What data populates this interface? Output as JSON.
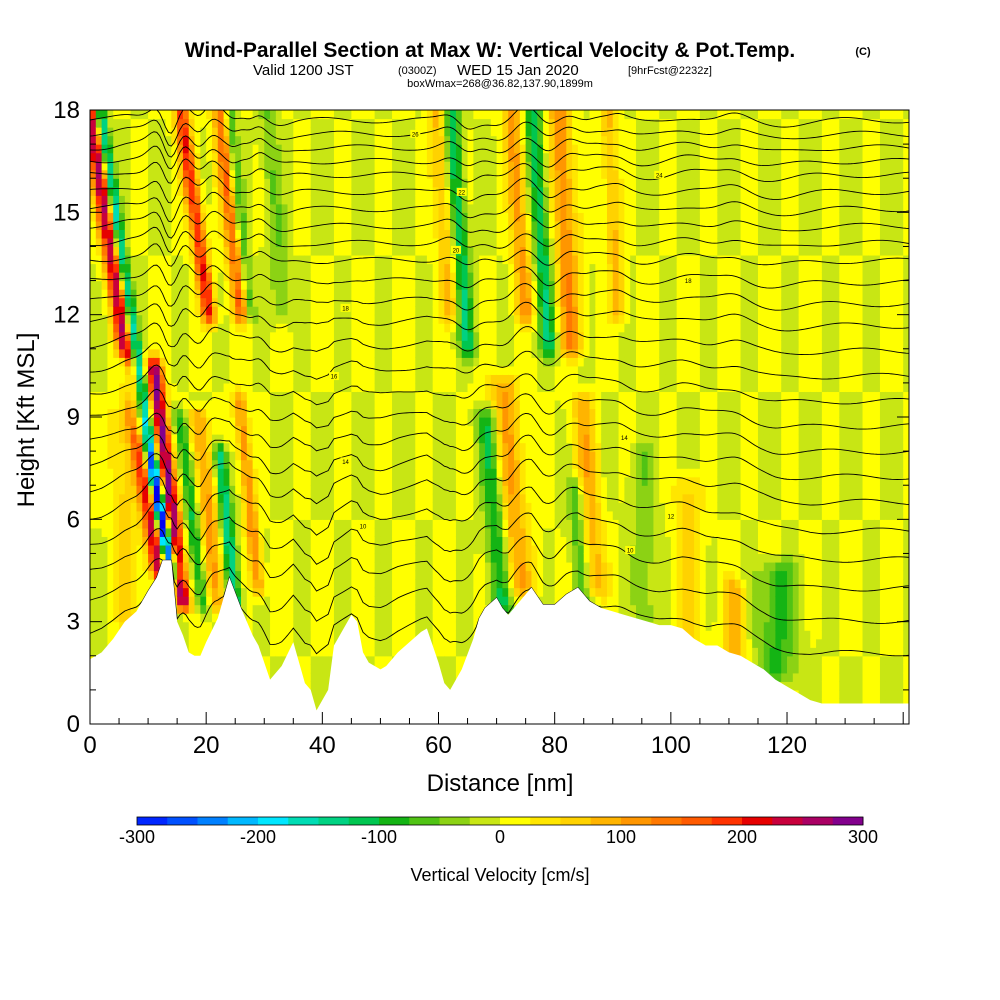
{
  "header": {
    "title": "Wind-Parallel Section at Max W: Vertical Velocity & Pot.Temp.",
    "title_mark": "(C)",
    "valid_prefix": "Valid 1200 JST",
    "valid_utc": "(0300Z)",
    "valid_date": "WED 15 Jan 2020",
    "forecast_info": "[9hrFcst@2232z]",
    "box_info": "boxWmax=268@36.82,137.90,1899m"
  },
  "colors": {
    "background": "#ffffff",
    "terrain": "#ffffff",
    "contour": "#000000",
    "palette": [
      "#0000f0",
      "#0026ff",
      "#0050ff",
      "#0080ff",
      "#00b8ff",
      "#00e6ff",
      "#00dcb4",
      "#00d282",
      "#00c650",
      "#14b414",
      "#50c314",
      "#8cd214",
      "#c8e614",
      "#ffff00",
      "#ffe600",
      "#ffd200",
      "#ffb400",
      "#ff9600",
      "#ff7800",
      "#ff5a00",
      "#ff3200",
      "#e60000",
      "#c8003c",
      "#aa0064",
      "#82008c",
      "#5a0096"
    ]
  },
  "chart_data": {
    "type": "heatmap",
    "title": "Wind-Parallel Section at Max W: Vertical Velocity & Pot.Temp.",
    "xlabel": "Distance [nm]",
    "ylabel": "Height [Kft MSL]",
    "xlim": [
      0,
      141
    ],
    "ylim": [
      0,
      18
    ],
    "x_ticks": [
      0,
      20,
      40,
      60,
      80,
      100,
      120
    ],
    "y_ticks": [
      0,
      3,
      6,
      9,
      12,
      15,
      18
    ],
    "grid": false,
    "colorbar": {
      "title": "Vertical Velocity [cm/s]",
      "min": -300,
      "max": 300,
      "step": 25,
      "ticks": [
        -300,
        -200,
        -100,
        0,
        100,
        200,
        300
      ]
    },
    "terrain_kft": [
      [
        0,
        1.9
      ],
      [
        2,
        2.1
      ],
      [
        4,
        2.5
      ],
      [
        6,
        3.0
      ],
      [
        8,
        3.3
      ],
      [
        10,
        3.9
      ],
      [
        11.5,
        4.3
      ],
      [
        12.5,
        4.8
      ],
      [
        14,
        4.8
      ],
      [
        15,
        3.0
      ],
      [
        16,
        2.6
      ],
      [
        17,
        2.1
      ],
      [
        18,
        2.0
      ],
      [
        19,
        2.0
      ],
      [
        20,
        2.4
      ],
      [
        22,
        3.1
      ],
      [
        24,
        4.3
      ],
      [
        26,
        3.4
      ],
      [
        27,
        3.0
      ],
      [
        28,
        2.6
      ],
      [
        29,
        2.3
      ],
      [
        30,
        1.8
      ],
      [
        31,
        1.3
      ],
      [
        33,
        1.7
      ],
      [
        35,
        2.4
      ],
      [
        37,
        1.2
      ],
      [
        38,
        1.0
      ],
      [
        39,
        0.4
      ],
      [
        41,
        1.0
      ],
      [
        42,
        2.3
      ],
      [
        44,
        2.9
      ],
      [
        45,
        3.2
      ],
      [
        46,
        3.0
      ],
      [
        47,
        2.1
      ],
      [
        48,
        1.8
      ],
      [
        50,
        1.6
      ],
      [
        51,
        1.7
      ],
      [
        53,
        2.1
      ],
      [
        55,
        2.4
      ],
      [
        57,
        2.7
      ],
      [
        58,
        2.8
      ],
      [
        60,
        1.8
      ],
      [
        61,
        1.2
      ],
      [
        62,
        1.0
      ],
      [
        63,
        1.3
      ],
      [
        64,
        1.6
      ],
      [
        66,
        2.5
      ],
      [
        67,
        3.1
      ],
      [
        68,
        3.4
      ],
      [
        70,
        3.7
      ],
      [
        71,
        3.4
      ],
      [
        72,
        3.2
      ],
      [
        73,
        3.4
      ],
      [
        74,
        3.6
      ],
      [
        76,
        4.0
      ],
      [
        78,
        3.5
      ],
      [
        80,
        3.5
      ],
      [
        82,
        3.8
      ],
      [
        84,
        4.0
      ],
      [
        86,
        3.6
      ],
      [
        88,
        3.4
      ],
      [
        90,
        3.3
      ],
      [
        92,
        3.2
      ],
      [
        94,
        3.1
      ],
      [
        96,
        3.0
      ],
      [
        98,
        2.9
      ],
      [
        100,
        2.9
      ],
      [
        102,
        2.8
      ],
      [
        104,
        2.5
      ],
      [
        106,
        2.3
      ],
      [
        108,
        2.3
      ],
      [
        110,
        2.1
      ],
      [
        112,
        2.0
      ],
      [
        114,
        1.8
      ],
      [
        116,
        1.6
      ],
      [
        118,
        1.3
      ],
      [
        120,
        1.1
      ],
      [
        122,
        0.9
      ],
      [
        124,
        0.7
      ],
      [
        126,
        0.6
      ],
      [
        128,
        0.6
      ],
      [
        130,
        0.6
      ],
      [
        132,
        0.6
      ],
      [
        134,
        0.6
      ],
      [
        136,
        0.6
      ],
      [
        138,
        0.6
      ],
      [
        141,
        0.6
      ]
    ],
    "updrafts": [
      {
        "x": 12,
        "h0": 4.5,
        "h1": 18,
        "tilt": -0.22,
        "width": 1.6,
        "w": 260
      },
      {
        "x": 16,
        "h0": 3.6,
        "h1": 10.5,
        "tilt": -0.18,
        "width": 1.3,
        "w": 290
      },
      {
        "x": 20.5,
        "h0": 12,
        "h1": 18,
        "tilt": -0.2,
        "width": 1.3,
        "w": 200
      },
      {
        "x": 22,
        "h0": 3.5,
        "h1": 9.0,
        "tilt": -0.15,
        "width": 1.8,
        "w": 110
      },
      {
        "x": 26,
        "h0": 12,
        "h1": 18,
        "tilt": -0.15,
        "width": 1.5,
        "w": 150
      },
      {
        "x": 29,
        "h0": 4.0,
        "h1": 9.5,
        "tilt": -0.15,
        "width": 1.2,
        "w": 120
      },
      {
        "x": 7,
        "h0": 3.0,
        "h1": 9.0,
        "tilt": -0.08,
        "width": 2.2,
        "w": 60
      },
      {
        "x": 62,
        "h0": 12,
        "h1": 18,
        "tilt": -0.1,
        "width": 1.5,
        "w": 80
      },
      {
        "x": 74,
        "h0": 4.0,
        "h1": 10.0,
        "tilt": -0.12,
        "width": 2.6,
        "w": 100
      },
      {
        "x": 75,
        "h0": 12,
        "h1": 18,
        "tilt": -0.1,
        "width": 1.6,
        "w": 110
      },
      {
        "x": 83,
        "h0": 11,
        "h1": 18,
        "tilt": -0.08,
        "width": 2.0,
        "w": 120
      },
      {
        "x": 87,
        "h0": 4.0,
        "h1": 9.5,
        "tilt": -0.1,
        "width": 2.0,
        "w": 90
      },
      {
        "x": 91,
        "h0": 12,
        "h1": 18,
        "tilt": -0.08,
        "width": 1.4,
        "w": 80
      },
      {
        "x": 103,
        "h0": 2.5,
        "h1": 7.0,
        "tilt": 0.0,
        "width": 2.5,
        "w": 60
      },
      {
        "x": 111,
        "h0": 2.0,
        "h1": 4.0,
        "tilt": 0.0,
        "width": 2.0,
        "w": 90
      }
    ],
    "downdrafts": [
      {
        "x": 13.5,
        "h0": 4.5,
        "h1": 18,
        "tilt": -0.22,
        "width": 1.0,
        "w": -240
      },
      {
        "x": 14.5,
        "h0": 4.5,
        "h1": 10.5,
        "tilt": -0.35,
        "width": 1.2,
        "w": -200
      },
      {
        "x": 19.5,
        "h0": 3.5,
        "h1": 9.0,
        "tilt": -0.18,
        "width": 1.2,
        "w": -110
      },
      {
        "x": 25,
        "h0": 3.5,
        "h1": 8.0,
        "tilt": -0.15,
        "width": 1.2,
        "w": -150
      },
      {
        "x": 27.5,
        "h0": 12,
        "h1": 18,
        "tilt": -0.15,
        "width": 1.0,
        "w": -100
      },
      {
        "x": 33,
        "h0": 12,
        "h1": 18,
        "tilt": -0.1,
        "width": 1.5,
        "w": -50
      },
      {
        "x": 65,
        "h0": 11,
        "h1": 18,
        "tilt": -0.1,
        "width": 1.4,
        "w": -120
      },
      {
        "x": 71,
        "h0": 3.5,
        "h1": 9.0,
        "tilt": -0.12,
        "width": 1.8,
        "w": -110
      },
      {
        "x": 79,
        "h0": 11,
        "h1": 18,
        "tilt": -0.1,
        "width": 1.5,
        "w": -120
      },
      {
        "x": 85,
        "h0": 3.5,
        "h1": 7.0,
        "tilt": -0.1,
        "width": 1.5,
        "w": -80
      },
      {
        "x": 96,
        "h0": 3.0,
        "h1": 8.0,
        "tilt": -0.05,
        "width": 2.5,
        "w": -40
      },
      {
        "x": 118,
        "h0": 1.5,
        "h1": 4.5,
        "tilt": 0.05,
        "width": 3.5,
        "w": -80
      }
    ],
    "theta_levels_kft": [
      2.7,
      3.6,
      4.5,
      5.3,
      6.1,
      6.9,
      7.6,
      8.3,
      9.0,
      9.7,
      10.4,
      11.1,
      11.8,
      12.4,
      13.0,
      13.6,
      14.1,
      14.6,
      15.1,
      15.6,
      16.1,
      16.5,
      16.9,
      17.3,
      17.7
    ],
    "contour_labels": [
      {
        "text": "10",
        "x": 47,
        "y": 5.8
      },
      {
        "text": "10",
        "x": 93,
        "y": 5.1
      },
      {
        "text": "12",
        "x": 100,
        "y": 6.1
      },
      {
        "text": "14",
        "x": 44,
        "y": 7.7
      },
      {
        "text": "14",
        "x": 92,
        "y": 8.4
      },
      {
        "text": "16",
        "x": 42,
        "y": 10.2
      },
      {
        "text": "18",
        "x": 44,
        "y": 12.2
      },
      {
        "text": "18",
        "x": 103,
        "y": 13.0
      },
      {
        "text": "20",
        "x": 63,
        "y": 13.9
      },
      {
        "text": "22",
        "x": 64,
        "y": 15.6
      },
      {
        "text": "24",
        "x": 98,
        "y": 16.1
      },
      {
        "text": "26",
        "x": 56,
        "y": 17.3
      }
    ]
  },
  "colorbar_labels": [
    "-300",
    "-200",
    "-100",
    "0",
    "100",
    "200",
    "300"
  ]
}
